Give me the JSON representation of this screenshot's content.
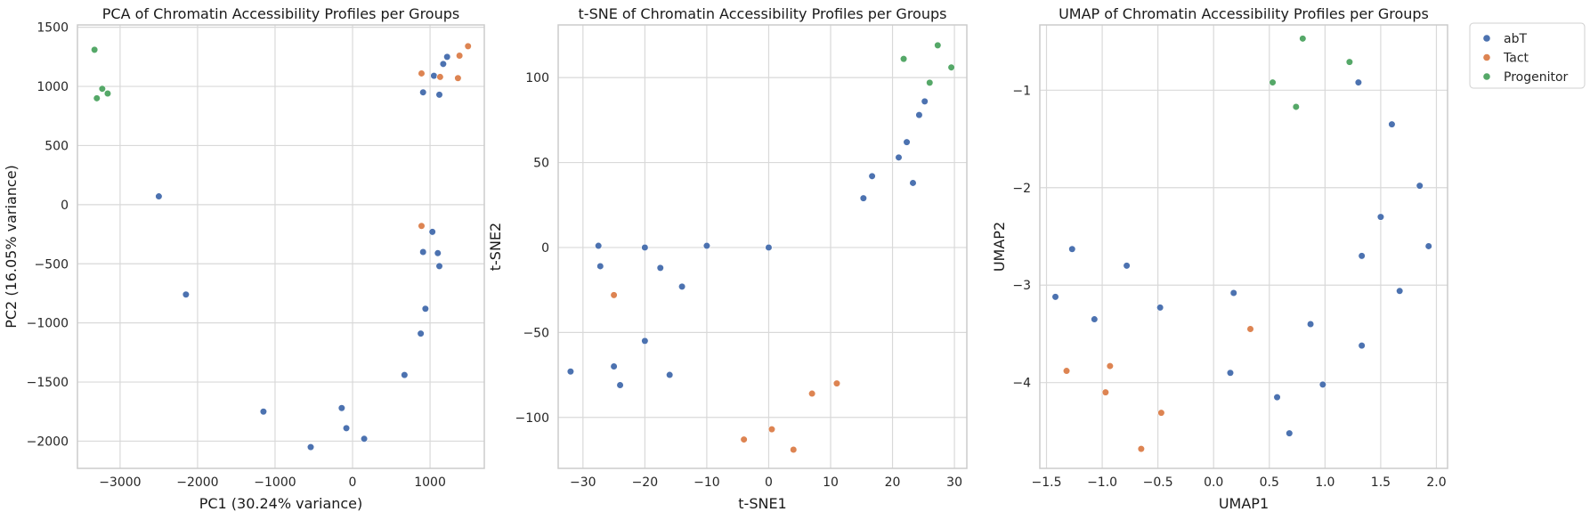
{
  "chart_data": [
    {
      "type": "scatter",
      "title": "PCA of Chromatin Accessibility Profiles per Groups",
      "xlabel": "PC1 (30.24% variance)",
      "ylabel": "PC2 (16.05% variance)",
      "xlim": [
        -3550,
        1700
      ],
      "ylim": [
        -2230,
        1520
      ],
      "xticks": [
        -3000,
        -2000,
        -1000,
        0,
        1000
      ],
      "yticks": [
        -2000,
        -1500,
        -1000,
        -500,
        0,
        500,
        1000,
        1500
      ],
      "grid": true,
      "series": [
        {
          "name": "abT",
          "color": "#4c72b0",
          "points": [
            [
              -2500,
              70
            ],
            [
              -2150,
              -760
            ],
            [
              -1150,
              -1750
            ],
            [
              -540,
              -2050
            ],
            [
              -140,
              -1720
            ],
            [
              -80,
              -1890
            ],
            [
              150,
              -1980
            ],
            [
              670,
              -1440
            ],
            [
              880,
              -1090
            ],
            [
              910,
              -400
            ],
            [
              940,
              -880
            ],
            [
              1030,
              -230
            ],
            [
              1100,
              -410
            ],
            [
              1120,
              -520
            ],
            [
              910,
              950
            ],
            [
              1050,
              1090
            ],
            [
              1120,
              930
            ],
            [
              1170,
              1190
            ],
            [
              1220,
              1250
            ]
          ]
        },
        {
          "name": "Tact",
          "color": "#dd8452",
          "points": [
            [
              890,
              -180
            ],
            [
              890,
              1110
            ],
            [
              1130,
              1080
            ],
            [
              1360,
              1070
            ],
            [
              1380,
              1260
            ],
            [
              1490,
              1340
            ]
          ]
        },
        {
          "name": "Progenitor",
          "color": "#55a868",
          "points": [
            [
              -3330,
              1310
            ],
            [
              -3300,
              900
            ],
            [
              -3230,
              980
            ],
            [
              -3160,
              940
            ]
          ]
        }
      ]
    },
    {
      "type": "scatter",
      "title": "t-SNE of Chromatin Accessibility Profiles per Groups",
      "xlabel": "t-SNE1",
      "ylabel": "t-SNE2",
      "xlim": [
        -34,
        32
      ],
      "ylim": [
        -130,
        131
      ],
      "xticks": [
        -30,
        -20,
        -10,
        0,
        10,
        20,
        30
      ],
      "yticks": [
        -100,
        -50,
        0,
        50,
        100
      ],
      "grid": true,
      "series": [
        {
          "name": "abT",
          "color": "#4c72b0",
          "points": [
            [
              -32,
              -73
            ],
            [
              -27.5,
              1
            ],
            [
              -27.2,
              -11
            ],
            [
              -25,
              -70
            ],
            [
              -24,
              -81
            ],
            [
              -20,
              -55
            ],
            [
              -20,
              0
            ],
            [
              -17.5,
              -12
            ],
            [
              -16,
              -75
            ],
            [
              -14,
              -23
            ],
            [
              -10,
              1
            ],
            [
              0,
              0
            ],
            [
              15.3,
              29
            ],
            [
              16.7,
              42
            ],
            [
              21,
              53
            ],
            [
              22.3,
              62
            ],
            [
              23.3,
              38
            ],
            [
              24.3,
              78
            ],
            [
              25.2,
              86
            ]
          ]
        },
        {
          "name": "Tact",
          "color": "#dd8452",
          "points": [
            [
              -25,
              -28
            ],
            [
              -4,
              -113
            ],
            [
              0.5,
              -107
            ],
            [
              4,
              -119
            ],
            [
              7,
              -86
            ],
            [
              11,
              -80
            ]
          ]
        },
        {
          "name": "Progenitor",
          "color": "#55a868",
          "points": [
            [
              21.8,
              111
            ],
            [
              26,
              97
            ],
            [
              27.3,
              119
            ],
            [
              29.5,
              106
            ]
          ]
        }
      ]
    },
    {
      "type": "scatter",
      "title": "UMAP of Chromatin Accessibility Profiles per Groups",
      "xlabel": "UMAP1",
      "ylabel": "UMAP2",
      "xlim": [
        -1.56,
        2.1
      ],
      "ylim": [
        -4.88,
        -0.33
      ],
      "xticks": [
        -1.5,
        -1.0,
        -0.5,
        0.0,
        0.5,
        1.0,
        1.5,
        2.0
      ],
      "yticks": [
        -4,
        -3,
        -2,
        -1
      ],
      "grid": true,
      "series": [
        {
          "name": "abT",
          "color": "#4c72b0",
          "points": [
            [
              -1.42,
              -3.12
            ],
            [
              -1.27,
              -2.63
            ],
            [
              -1.07,
              -3.35
            ],
            [
              -0.78,
              -2.8
            ],
            [
              -0.48,
              -3.23
            ],
            [
              0.15,
              -3.9
            ],
            [
              0.18,
              -3.08
            ],
            [
              0.57,
              -4.15
            ],
            [
              0.68,
              -4.52
            ],
            [
              0.87,
              -3.4
            ],
            [
              0.98,
              -4.02
            ],
            [
              1.3,
              -0.92
            ],
            [
              1.33,
              -2.7
            ],
            [
              1.33,
              -3.62
            ],
            [
              1.5,
              -2.3
            ],
            [
              1.6,
              -1.35
            ],
            [
              1.67,
              -3.06
            ],
            [
              1.85,
              -1.98
            ],
            [
              1.93,
              -2.6
            ]
          ]
        },
        {
          "name": "Tact",
          "color": "#dd8452",
          "points": [
            [
              -1.32,
              -3.88
            ],
            [
              -0.97,
              -4.1
            ],
            [
              -0.93,
              -3.83
            ],
            [
              -0.65,
              -4.68
            ],
            [
              -0.47,
              -4.31
            ],
            [
              0.33,
              -3.45
            ]
          ]
        },
        {
          "name": "Progenitor",
          "color": "#55a868",
          "points": [
            [
              0.53,
              -0.92
            ],
            [
              0.74,
              -1.17
            ],
            [
              0.8,
              -0.47
            ],
            [
              1.22,
              -0.71
            ]
          ]
        }
      ]
    }
  ],
  "legend": {
    "placement": "outside-top-right",
    "items": [
      {
        "label": "abT",
        "color": "#4c72b0"
      },
      {
        "label": "Tact",
        "color": "#dd8452"
      },
      {
        "label": "Progenitor",
        "color": "#55a868"
      }
    ]
  }
}
